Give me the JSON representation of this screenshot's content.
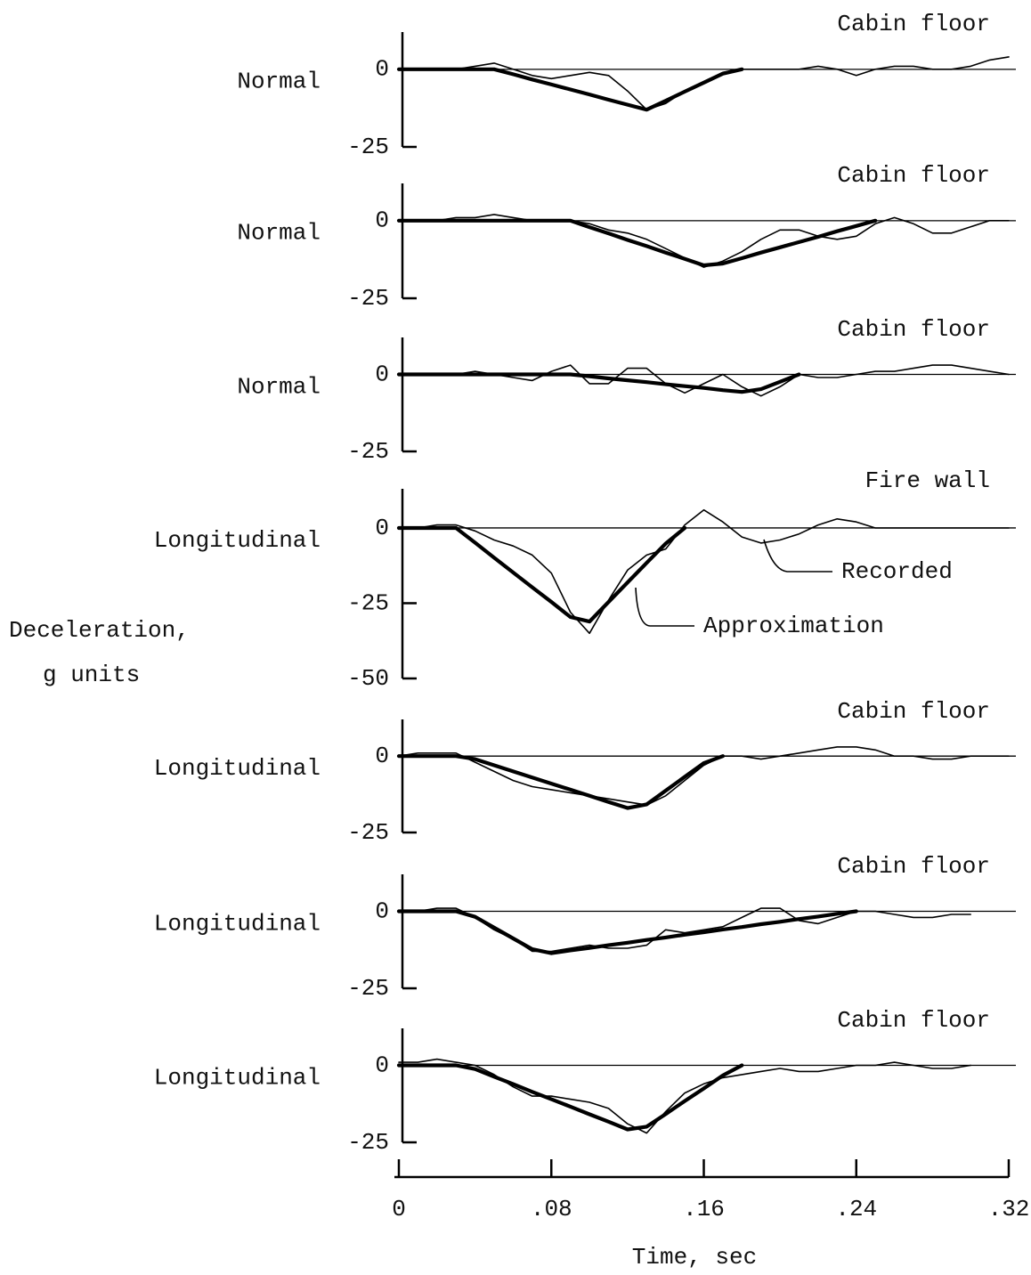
{
  "ylabel": [
    "Deceleration,",
    "g units"
  ],
  "chart_data": [
    {
      "type": "line",
      "title": "Cabin floor",
      "ylabel": "Normal",
      "xlim": [
        0,
        0.32
      ],
      "ylim": [
        -25,
        12
      ],
      "yticks": [
        -25,
        0
      ],
      "x": [
        0,
        0.01,
        0.02,
        0.03,
        0.04,
        0.05,
        0.06,
        0.07,
        0.08,
        0.09,
        0.1,
        0.11,
        0.12,
        0.13,
        0.14,
        0.15,
        0.16,
        0.17,
        0.18,
        0.19,
        0.2,
        0.21,
        0.22,
        0.23,
        0.24,
        0.25,
        0.26,
        0.27,
        0.28,
        0.29,
        0.3,
        0.31,
        0.32
      ],
      "series": [
        {
          "color": "#000000",
          "values": [
            0,
            0,
            0,
            0,
            1,
            2,
            0,
            -2,
            -3,
            -2,
            -1,
            -2,
            -7,
            -13,
            -11,
            -7,
            -4,
            -1,
            0,
            0,
            0,
            0,
            1,
            0,
            -2,
            0,
            1,
            1,
            0,
            0,
            1,
            3,
            4
          ]
        },
        {
          "color": "#000000",
          "values": [
            0,
            0,
            0,
            0,
            0,
            0,
            -1.6,
            -3.3,
            -4.9,
            -6.5,
            -8.1,
            -9.8,
            -11.4,
            -13,
            -10.1,
            -7.2,
            -4.3,
            -1.4,
            0,
            null,
            null,
            null,
            null,
            null,
            null,
            null,
            null,
            null,
            null,
            null,
            null,
            null,
            null
          ]
        }
      ]
    },
    {
      "type": "line",
      "title": "Cabin floor",
      "ylabel": "Normal",
      "xlim": [
        0,
        0.32
      ],
      "ylim": [
        -25,
        12
      ],
      "yticks": [
        -25,
        0
      ],
      "x": [
        0,
        0.01,
        0.02,
        0.03,
        0.04,
        0.05,
        0.06,
        0.07,
        0.08,
        0.09,
        0.1,
        0.11,
        0.12,
        0.13,
        0.14,
        0.15,
        0.16,
        0.17,
        0.18,
        0.19,
        0.2,
        0.21,
        0.22,
        0.23,
        0.24,
        0.25,
        0.26,
        0.27,
        0.28,
        0.29,
        0.3,
        0.31,
        0.32
      ],
      "series": [
        {
          "color": "#000000",
          "values": [
            0,
            0,
            0,
            1,
            1,
            2,
            1,
            0,
            0,
            0,
            -1,
            -3,
            -4,
            -6,
            -9,
            -12,
            -15,
            -13,
            -10,
            -6,
            -3,
            -3,
            -5,
            -6,
            -5,
            -1,
            1,
            -1,
            -4,
            -4,
            -2,
            0,
            0
          ]
        },
        {
          "color": "#000000",
          "values": [
            0,
            0,
            0,
            0,
            0,
            0,
            0,
            0,
            0,
            0,
            -2.1,
            -4.1,
            -6.2,
            -8.2,
            -10.3,
            -12.3,
            -14.4,
            -13.8,
            -12.1,
            -10.3,
            -8.6,
            -6.9,
            -5.2,
            -3.4,
            -1.7,
            0,
            null,
            null,
            null,
            null,
            null,
            null,
            null
          ]
        }
      ]
    },
    {
      "type": "line",
      "title": "Cabin floor",
      "ylabel": "Normal",
      "xlim": [
        0,
        0.32
      ],
      "ylim": [
        -25,
        12
      ],
      "yticks": [
        -25,
        0
      ],
      "x": [
        0,
        0.01,
        0.02,
        0.03,
        0.04,
        0.05,
        0.06,
        0.07,
        0.08,
        0.09,
        0.1,
        0.11,
        0.12,
        0.13,
        0.14,
        0.15,
        0.16,
        0.17,
        0.18,
        0.19,
        0.2,
        0.21,
        0.22,
        0.23,
        0.24,
        0.25,
        0.26,
        0.27,
        0.28,
        0.29,
        0.3,
        0.31,
        0.32
      ],
      "series": [
        {
          "color": "#000000",
          "values": [
            0,
            0,
            0,
            0,
            1,
            0,
            -1,
            -2,
            1,
            3,
            -3,
            -3,
            2,
            2,
            -3,
            -6,
            -3,
            0,
            -4,
            -7,
            -4,
            0,
            -1,
            -1,
            0,
            1,
            1,
            2,
            3,
            3,
            2,
            1,
            0
          ]
        },
        {
          "color": "#000000",
          "values": [
            0,
            0,
            0,
            0,
            0,
            0,
            0,
            0,
            0,
            0,
            -0.6,
            -1.3,
            -1.9,
            -2.5,
            -3.2,
            -3.8,
            -4.4,
            -5.1,
            -5.7,
            -4.8,
            -2.4,
            0,
            null,
            null,
            null,
            null,
            null,
            null,
            null,
            null,
            null,
            null,
            null
          ]
        }
      ]
    },
    {
      "type": "line",
      "title": "Fire wall",
      "ylabel": "Longitudinal",
      "xlim": [
        0,
        0.32
      ],
      "ylim": [
        -50,
        13
      ],
      "yticks": [
        -50,
        -25,
        0
      ],
      "x": [
        0,
        0.01,
        0.02,
        0.03,
        0.04,
        0.05,
        0.06,
        0.07,
        0.08,
        0.09,
        0.1,
        0.11,
        0.12,
        0.13,
        0.14,
        0.15,
        0.16,
        0.17,
        0.18,
        0.19,
        0.2,
        0.21,
        0.22,
        0.23,
        0.24,
        0.25,
        0.26,
        0.27,
        0.28,
        0.29,
        0.3,
        0.31,
        0.32
      ],
      "series": [
        {
          "name": "Recorded",
          "color": "#000000",
          "values": [
            0,
            0,
            1,
            1,
            -1,
            -4,
            -6,
            -9,
            -15,
            -28,
            -35,
            -24,
            -14,
            -9,
            -7,
            1,
            6,
            2,
            -3,
            -5,
            -4,
            -2,
            1,
            3,
            2,
            0,
            0,
            0,
            0,
            0,
            0,
            0,
            0
          ]
        },
        {
          "name": "Approximation",
          "color": "#000000",
          "values": [
            0,
            0,
            0,
            0,
            -4.9,
            -9.9,
            -14.8,
            -19.7,
            -24.6,
            -29.6,
            -31.1,
            -24.6,
            -18.1,
            -11.6,
            -5.2,
            0,
            null,
            null,
            null,
            null,
            null,
            null,
            null,
            null,
            null,
            null,
            null,
            null,
            null,
            null,
            null,
            null,
            null
          ]
        }
      ]
    },
    {
      "type": "line",
      "title": "Cabin floor",
      "ylabel": "Longitudinal",
      "xlim": [
        0,
        0.32
      ],
      "ylim": [
        -25,
        12
      ],
      "yticks": [
        -25,
        0
      ],
      "x": [
        0,
        0.01,
        0.02,
        0.03,
        0.04,
        0.05,
        0.06,
        0.07,
        0.08,
        0.09,
        0.1,
        0.11,
        0.12,
        0.13,
        0.14,
        0.15,
        0.16,
        0.17,
        0.18,
        0.19,
        0.2,
        0.21,
        0.22,
        0.23,
        0.24,
        0.25,
        0.26,
        0.27,
        0.28,
        0.29,
        0.3,
        0.31,
        0.32
      ],
      "series": [
        {
          "color": "#000000",
          "values": [
            0,
            1,
            1,
            1,
            -2,
            -5,
            -8,
            -10,
            -11,
            -12,
            -13,
            -14,
            -15,
            -16,
            -13,
            -8,
            -3,
            0,
            0,
            -1,
            0,
            1,
            2,
            3,
            3,
            2,
            0,
            0,
            -1,
            -1,
            0,
            0,
            0
          ]
        },
        {
          "color": "#000000",
          "values": [
            0,
            0,
            0,
            0,
            -1,
            -3,
            -5,
            -7,
            -9,
            -11,
            -13,
            -15,
            -17,
            -15.8,
            -11.3,
            -6.8,
            -2.3,
            0,
            null,
            null,
            null,
            null,
            null,
            null,
            null,
            null,
            null,
            null,
            null,
            null,
            null,
            null,
            null
          ]
        }
      ]
    },
    {
      "type": "line",
      "title": "Cabin floor",
      "ylabel": "Longitudinal",
      "xlim": [
        0,
        0.32
      ],
      "ylim": [
        -25,
        12
      ],
      "yticks": [
        -25,
        0
      ],
      "x": [
        0,
        0.01,
        0.02,
        0.03,
        0.04,
        0.05,
        0.06,
        0.07,
        0.08,
        0.09,
        0.1,
        0.11,
        0.12,
        0.13,
        0.14,
        0.15,
        0.16,
        0.17,
        0.18,
        0.19,
        0.2,
        0.21,
        0.22,
        0.23,
        0.24,
        0.25,
        0.26,
        0.27,
        0.28,
        0.29,
        0.3,
        0.31,
        0.32
      ],
      "series": [
        {
          "color": "#000000",
          "values": [
            0,
            0,
            1,
            1,
            -2,
            -6,
            -9,
            -13,
            -13,
            -12,
            -11,
            -12,
            -12,
            -11,
            -6,
            -7,
            -6,
            -5,
            -2,
            1,
            1,
            -3,
            -4,
            -2,
            0,
            0,
            -1,
            -2,
            -2,
            -1,
            -1,
            null,
            null
          ]
        },
        {
          "color": "#000000",
          "values": [
            0,
            0,
            0,
            0,
            -1.8,
            -5.3,
            -8.8,
            -12.3,
            -13.6,
            -12.7,
            -11.9,
            -11,
            -10.2,
            -9.3,
            -8.5,
            -7.6,
            -6.8,
            -5.9,
            -5.1,
            -4.2,
            -3.4,
            -2.5,
            -1.7,
            -0.8,
            0,
            null,
            null,
            null,
            null,
            null,
            null,
            null,
            null
          ]
        }
      ]
    },
    {
      "type": "line",
      "title": "Cabin floor",
      "ylabel": "Longitudinal",
      "xlim": [
        0,
        0.32
      ],
      "ylim": [
        -25,
        12
      ],
      "yticks": [
        -25,
        0
      ],
      "xlabel": "Time, sec",
      "xticks": [
        0,
        {
          "value": 0.08,
          "label": ".08"
        },
        {
          "value": 0.16,
          "label": ".16"
        },
        {
          "value": 0.24,
          "label": ".24"
        },
        {
          "value": 0.32,
          "label": ".32"
        }
      ],
      "x": [
        0,
        0.01,
        0.02,
        0.03,
        0.04,
        0.05,
        0.06,
        0.07,
        0.08,
        0.09,
        0.1,
        0.11,
        0.12,
        0.13,
        0.14,
        0.15,
        0.16,
        0.17,
        0.18,
        0.19,
        0.2,
        0.21,
        0.22,
        0.23,
        0.24,
        0.25,
        0.26,
        0.27,
        0.28,
        0.29,
        0.3,
        0.31,
        0.32
      ],
      "series": [
        {
          "color": "#000000",
          "values": [
            1,
            1,
            2,
            1,
            0,
            -3,
            -7,
            -10,
            -10,
            -11,
            -12,
            -14,
            -19,
            -22,
            -15,
            -9,
            -6,
            -4,
            -3,
            -2,
            -1,
            -2,
            -2,
            -1,
            0,
            0,
            1,
            0,
            -1,
            -1,
            0,
            null,
            null
          ]
        },
        {
          "color": "#000000",
          "values": [
            0,
            0,
            0,
            0,
            -1.2,
            -3.7,
            -6.1,
            -8.6,
            -11,
            -13.4,
            -15.9,
            -18.3,
            -20.8,
            -19.9,
            -15.8,
            -11.6,
            -7.5,
            -3.3,
            0,
            null,
            null,
            null,
            null,
            null,
            null,
            null,
            null,
            null,
            null,
            null,
            null,
            null,
            null
          ]
        }
      ]
    }
  ]
}
